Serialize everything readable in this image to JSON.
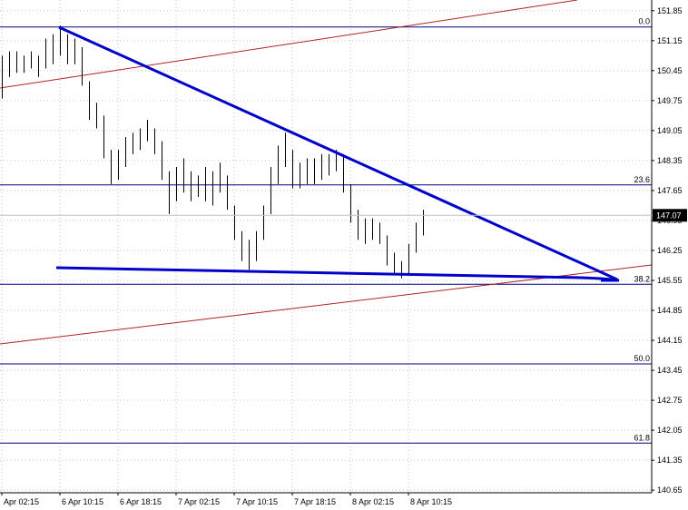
{
  "chart_data": {
    "type": "price-bars",
    "color": "#000000",
    "categories": [
      "Apr 02:15",
      null,
      null,
      null,
      null,
      null,
      null,
      null,
      "6 Apr 10:15",
      null,
      null,
      null,
      null,
      null,
      null,
      null,
      "6 Apr 18:15",
      null,
      null,
      null,
      null,
      null,
      null,
      null,
      "7 Apr 02:15",
      null,
      null,
      null,
      null,
      null,
      null,
      null,
      "7 Apr 10:15",
      null,
      null,
      null,
      null,
      null,
      null,
      null,
      "7 Apr 18:15",
      null,
      null,
      null,
      null,
      null,
      null,
      null,
      "8 Apr 02:15",
      null,
      null,
      null,
      null,
      null,
      null,
      null,
      "8 Apr 10:15",
      null,
      null
    ],
    "highs": [
      150.8,
      150.9,
      150.9,
      150.8,
      150.9,
      150.8,
      151.2,
      151.3,
      151.5,
      151.3,
      151.2,
      151.0,
      150.2,
      149.7,
      149.4,
      148.6,
      148.6,
      148.9,
      149.0,
      149.1,
      149.3,
      149.1,
      148.8,
      148.1,
      148.2,
      148.4,
      148.1,
      148.0,
      148.2,
      148.1,
      148.3,
      148.0,
      147.3,
      146.7,
      146.5,
      146.7,
      147.3,
      148.2,
      148.7,
      149.0,
      148.6,
      148.3,
      148.4,
      148.4,
      148.5,
      148.5,
      148.6,
      148.5,
      147.8,
      147.2,
      147.0,
      147.0,
      146.9,
      146.6,
      146.2,
      146.0,
      146.4,
      146.9,
      147.2
    ],
    "lows": [
      149.8,
      150.3,
      150.4,
      150.4,
      150.5,
      150.3,
      150.5,
      150.6,
      150.8,
      150.6,
      150.6,
      150.1,
      149.3,
      149.1,
      148.4,
      147.8,
      147.9,
      148.2,
      148.5,
      148.6,
      148.8,
      148.5,
      147.9,
      147.1,
      147.4,
      147.6,
      147.4,
      147.5,
      147.4,
      147.3,
      147.6,
      147.2,
      146.5,
      146.0,
      145.8,
      146.0,
      146.5,
      147.1,
      147.8,
      148.2,
      147.7,
      147.7,
      147.8,
      147.8,
      147.9,
      148.0,
      148.1,
      147.6,
      146.9,
      146.5,
      146.4,
      146.5,
      146.4,
      145.9,
      145.7,
      145.6,
      145.7,
      146.2,
      146.6
    ],
    "ylim": [
      140.59,
      152.1
    ],
    "yticks": [
      151.85,
      151.15,
      150.45,
      149.75,
      149.05,
      148.35,
      147.65,
      146.95,
      146.25,
      145.55,
      144.85,
      144.15,
      143.45,
      142.75,
      142.05,
      141.35,
      140.65
    ],
    "grid": true,
    "current_price": 147.07,
    "fib_levels": [
      {
        "label": "0.0",
        "value": 151.47
      },
      {
        "label": "23.6",
        "value": 147.78
      },
      {
        "label": "38.2",
        "value": 145.46
      },
      {
        "label": "50.0",
        "value": 143.6
      },
      {
        "label": "61.8",
        "value": 141.75
      }
    ]
  }
}
